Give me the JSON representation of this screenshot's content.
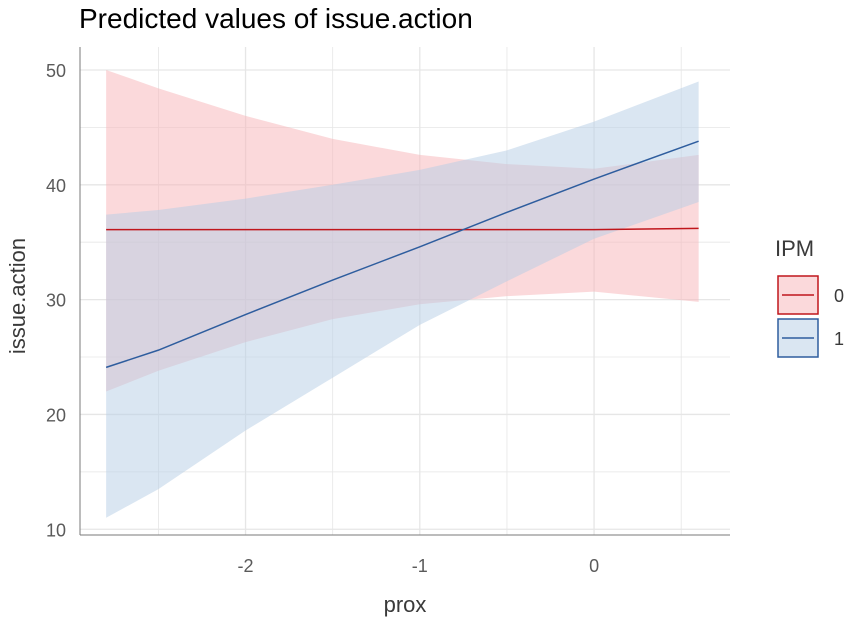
{
  "chart_data": {
    "type": "line",
    "title": "Predicted values of issue.action",
    "xlabel": "prox",
    "ylabel": "issue.action",
    "xlim": [
      -2.95,
      0.78
    ],
    "ylim": [
      9.5,
      52
    ],
    "x_ticks": [
      -2,
      -1,
      0
    ],
    "x_tick_labels": [
      "-2",
      "-1",
      "0"
    ],
    "y_ticks": [
      10,
      20,
      30,
      40,
      50
    ],
    "y_tick_labels": [
      "10",
      "20",
      "30",
      "40",
      "50"
    ],
    "grid": true,
    "legend": {
      "title": "IPM",
      "position": "right",
      "entries": [
        "0",
        "1"
      ]
    },
    "series": [
      {
        "name": "0",
        "color": "#c0161c",
        "fill": "#f8b4b8",
        "x": [
          -2.8,
          -2.5,
          -2.0,
          -1.5,
          -1.0,
          -0.5,
          0.0,
          0.6
        ],
        "values": [
          36.1,
          36.1,
          36.1,
          36.1,
          36.1,
          36.1,
          36.1,
          36.2
        ],
        "lower": [
          22.0,
          23.8,
          26.3,
          28.3,
          29.6,
          30.3,
          30.7,
          29.8
        ],
        "upper": [
          50.0,
          48.4,
          46.0,
          44.0,
          42.6,
          41.8,
          41.4,
          42.6
        ]
      },
      {
        "name": "1",
        "color": "#2e5d9e",
        "fill": "#b6cde6",
        "x": [
          -2.8,
          -2.5,
          -2.0,
          -1.5,
          -1.0,
          -0.5,
          0.0,
          0.6
        ],
        "values": [
          24.1,
          25.6,
          28.7,
          31.7,
          34.6,
          37.6,
          40.5,
          43.8
        ],
        "lower": [
          11.0,
          13.5,
          18.6,
          23.2,
          27.8,
          31.6,
          35.3,
          38.5
        ],
        "upper": [
          37.4,
          37.8,
          38.8,
          40.0,
          41.3,
          43.0,
          45.5,
          49.0
        ]
      }
    ]
  }
}
